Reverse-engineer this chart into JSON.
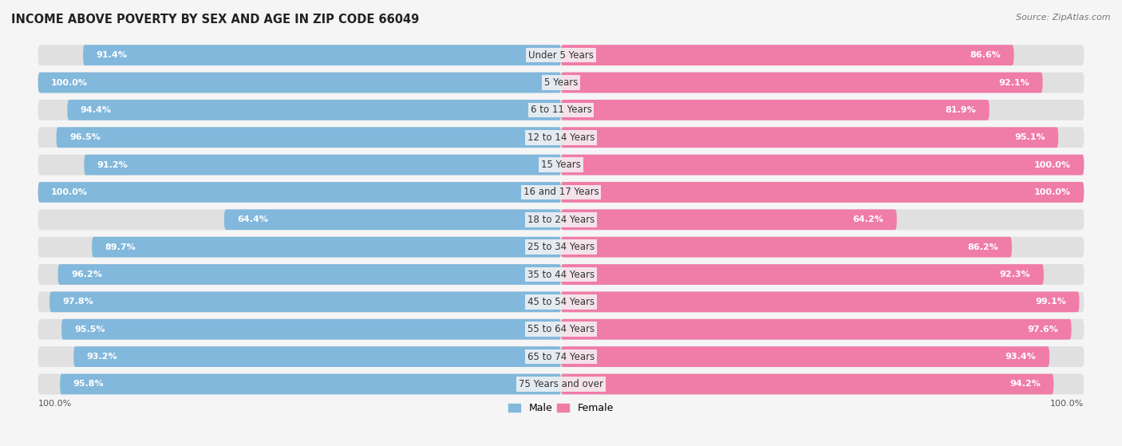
{
  "title": "INCOME ABOVE POVERTY BY SEX AND AGE IN ZIP CODE 66049",
  "source": "Source: ZipAtlas.com",
  "categories": [
    "Under 5 Years",
    "5 Years",
    "6 to 11 Years",
    "12 to 14 Years",
    "15 Years",
    "16 and 17 Years",
    "18 to 24 Years",
    "25 to 34 Years",
    "35 to 44 Years",
    "45 to 54 Years",
    "55 to 64 Years",
    "65 to 74 Years",
    "75 Years and over"
  ],
  "male_values": [
    91.4,
    100.0,
    94.4,
    96.5,
    91.2,
    100.0,
    64.4,
    89.7,
    96.2,
    97.8,
    95.5,
    93.2,
    95.8
  ],
  "female_values": [
    86.6,
    92.1,
    81.9,
    95.1,
    100.0,
    100.0,
    64.2,
    86.2,
    92.3,
    99.1,
    97.6,
    93.4,
    94.2
  ],
  "male_color": "#82b8dc",
  "female_color": "#f07ca8",
  "male_label": "Male",
  "female_label": "Female",
  "bg_color": "#f5f5f5",
  "bar_bg_color": "#e0e0e0",
  "title_fontsize": 10.5,
  "cat_fontsize": 8.5,
  "value_fontsize": 8,
  "source_fontsize": 8,
  "legend_fontsize": 9,
  "tick_fontsize": 8,
  "figsize": [
    14.06,
    5.59
  ],
  "dpi": 100
}
